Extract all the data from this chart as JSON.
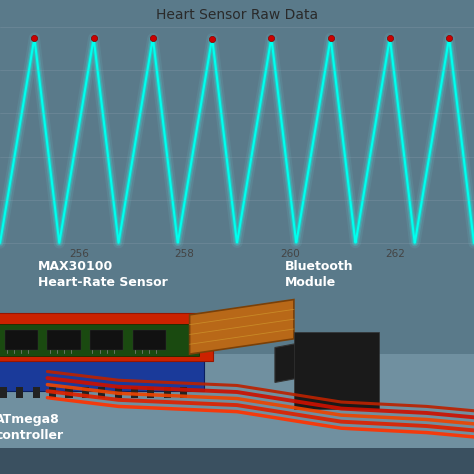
{
  "title": "Heart Sensor Raw Data",
  "screen_bg": "#b8cdd8",
  "waveform_color": "#00e8d8",
  "peak_color": "#cc0000",
  "x_ticks": [
    256,
    258,
    260,
    262
  ],
  "fig_bg": "#5a7a8a",
  "label_max30100": "MAX30100\nHeart-Rate Sensor",
  "label_bluetooth": "Bluetooth\nModule",
  "label_atmega": "ATmega8\ncontroller",
  "label_color": "#ffffff",
  "label_fontsize": 9,
  "title_fontsize": 10,
  "num_cycles": 8,
  "waveform_amplitude": 0.38,
  "waveform_baseline": 0.5,
  "x_min": 254.5,
  "x_max": 263.5
}
